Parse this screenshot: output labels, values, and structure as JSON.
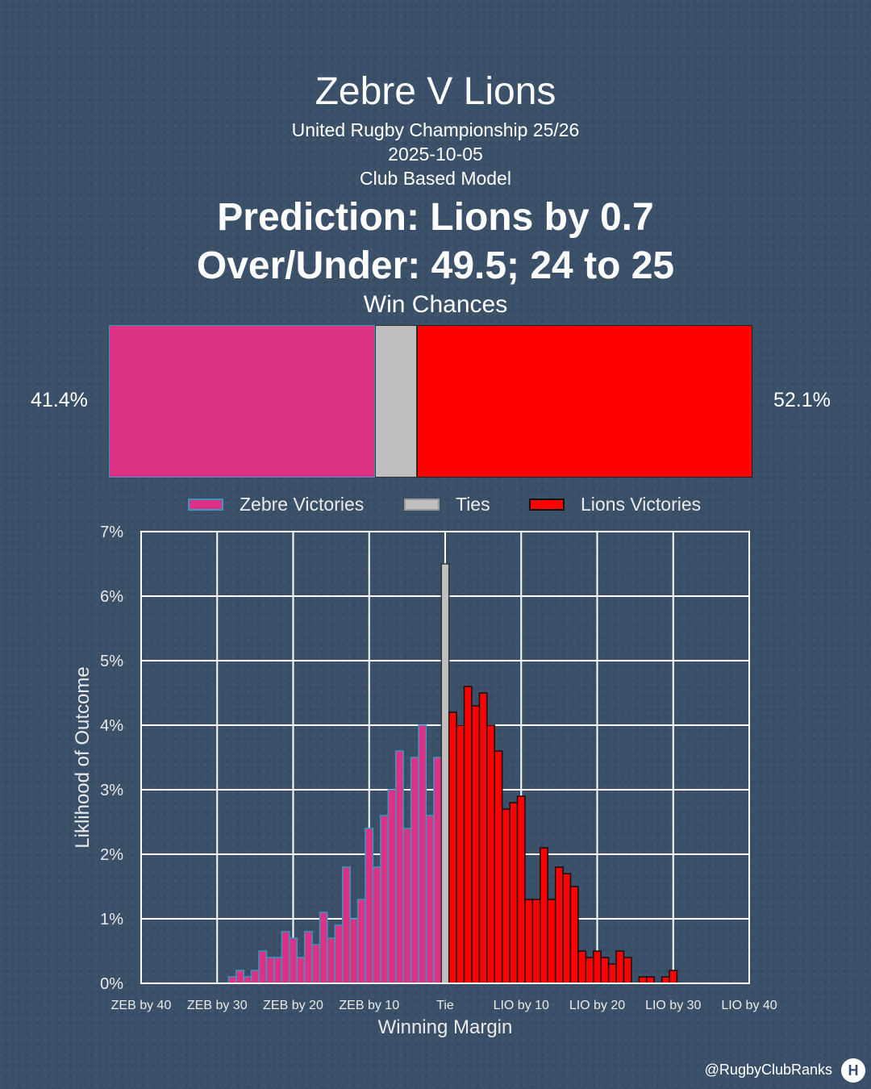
{
  "header": {
    "title": "Zebre V Lions",
    "competition": "United Rugby Championship 25/26",
    "date": "2025-10-05",
    "model": "Club Based Model",
    "prediction": "Prediction: Lions by 0.7",
    "over_under": "Over/Under: 49.5; 24 to 25",
    "win_chances_title": "Win Chances"
  },
  "win_bar": {
    "zebre_pct": 41.4,
    "ties_pct": 6.5,
    "lions_pct": 52.1,
    "zebre_label": "41.4%",
    "lions_label": "52.1%"
  },
  "legend": {
    "zebre": "Zebre Victories",
    "ties": "Ties",
    "lions": "Lions Victories"
  },
  "colors": {
    "zebre": "#dc3184",
    "zebre_edge": "#3a98c0",
    "ties": "#bfbfbf",
    "lions": "#ff0000",
    "lions_edge": "#111111"
  },
  "chart_data": {
    "type": "bar",
    "xlabel": "Winning Margin",
    "ylabel": "Liklihood of Outcome",
    "xlim": [
      -40,
      40
    ],
    "ylim": [
      0,
      7
    ],
    "grid": true,
    "x_ticks": [
      {
        "x": -40,
        "label": "ZEB by 40"
      },
      {
        "x": -30,
        "label": "ZEB by 30"
      },
      {
        "x": -20,
        "label": "ZEB by 20"
      },
      {
        "x": -10,
        "label": "ZEB by 10"
      },
      {
        "x": 0,
        "label": "Tie"
      },
      {
        "x": 10,
        "label": "LIO by 10"
      },
      {
        "x": 20,
        "label": "LIO by 20"
      },
      {
        "x": 30,
        "label": "LIO by 30"
      },
      {
        "x": 40,
        "label": "LIO by 40"
      }
    ],
    "y_ticks": [
      "0%",
      "1%",
      "2%",
      "3%",
      "4%",
      "5%",
      "6%",
      "7%"
    ],
    "series": [
      {
        "name": "Zebre Victories",
        "x": [
          -28,
          -27,
          -26,
          -25,
          -24,
          -23,
          -22,
          -21,
          -20,
          -19,
          -18,
          -17,
          -16,
          -15,
          -14,
          -13,
          -12,
          -11,
          -10,
          -9,
          -8,
          -7,
          -6,
          -5,
          -4,
          -3,
          -2,
          -1
        ],
        "values": [
          0.1,
          0.2,
          0.1,
          0.2,
          0.5,
          0.4,
          0.4,
          0.8,
          0.7,
          0.4,
          0.8,
          0.6,
          1.1,
          0.7,
          0.9,
          1.8,
          1.0,
          1.3,
          2.4,
          1.8,
          2.6,
          3.0,
          3.6,
          2.4,
          3.5,
          4.0,
          2.6,
          3.5
        ]
      },
      {
        "name": "Ties",
        "x": [
          0
        ],
        "values": [
          6.5
        ]
      },
      {
        "name": "Lions Victories",
        "x": [
          1,
          2,
          3,
          4,
          5,
          6,
          7,
          8,
          9,
          10,
          11,
          12,
          13,
          14,
          15,
          16,
          17,
          18,
          19,
          20,
          21,
          22,
          23,
          24,
          25,
          26,
          27,
          28,
          29,
          30
        ],
        "values": [
          4.2,
          4.0,
          4.6,
          4.3,
          4.5,
          4.0,
          3.6,
          2.7,
          2.8,
          2.9,
          1.3,
          1.3,
          2.1,
          1.3,
          1.8,
          1.7,
          1.5,
          0.5,
          0.4,
          0.5,
          0.4,
          0.3,
          0.5,
          0.4,
          0.0,
          0.1,
          0.1,
          0.0,
          0.1,
          0.2
        ]
      }
    ]
  },
  "footer": {
    "handle": "@RugbyClubRanks",
    "logo_text": "H"
  }
}
